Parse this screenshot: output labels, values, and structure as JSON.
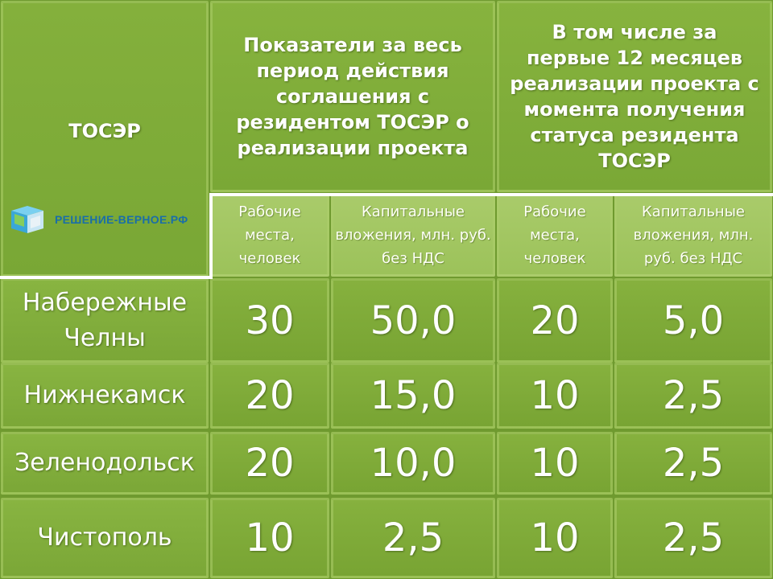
{
  "header": {
    "tosr": "ТОСЭР",
    "group1": "Показатели за весь период действия соглашения с резидентом ТОСЭР о реализации проекта",
    "group2": "В том числе за первые 12 месяцев реализации проекта с момента получения статуса резидента ТОСЭР",
    "sub_jobs": "Рабочие места, человек",
    "sub_capex": "Капитальные вложения, млн. руб. без НДС"
  },
  "logo": {
    "text": "РЕШЕНИЕ-ВЕРНОЕ.РФ",
    "icon": "cube-logo-icon"
  },
  "rows": [
    {
      "city": "Набережные Челны",
      "jobs_total": "30",
      "capex_total": "50,0",
      "jobs_first": "20",
      "capex_first": "5,0"
    },
    {
      "city": "Нижнекамск",
      "jobs_total": "20",
      "capex_total": "15,0",
      "jobs_first": "10",
      "capex_first": "2,5"
    },
    {
      "city": "Зеленодольск",
      "jobs_total": "20",
      "capex_total": "10,0",
      "jobs_first": "10",
      "capex_first": "2,5"
    },
    {
      "city": "Чистополь",
      "jobs_total": "10",
      "capex_total": "2,5",
      "jobs_first": "10",
      "capex_first": "2,5"
    }
  ]
}
